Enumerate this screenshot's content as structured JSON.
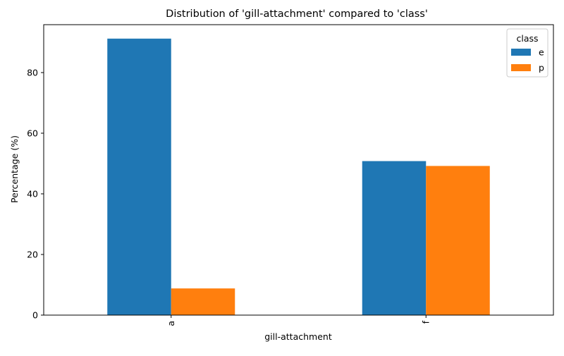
{
  "chart_data": {
    "type": "bar",
    "title": "Distribution of 'gill-attachment' compared to 'class'",
    "xlabel": "gill-attachment",
    "ylabel": "Percentage (%)",
    "categories": [
      "a",
      "f"
    ],
    "series": [
      {
        "name": "e",
        "values": [
          91.2,
          50.8
        ],
        "color": "#1f77b4"
      },
      {
        "name": "p",
        "values": [
          8.8,
          49.2
        ],
        "color": "#ff7f0e"
      }
    ],
    "ylim": [
      0,
      95.8
    ],
    "yticks": [
      0,
      20,
      40,
      60,
      80
    ],
    "ytick_labels": [
      "0",
      "20",
      "40",
      "60",
      "80"
    ],
    "legend": {
      "title": "class",
      "position": "top-right"
    },
    "grid": false
  }
}
